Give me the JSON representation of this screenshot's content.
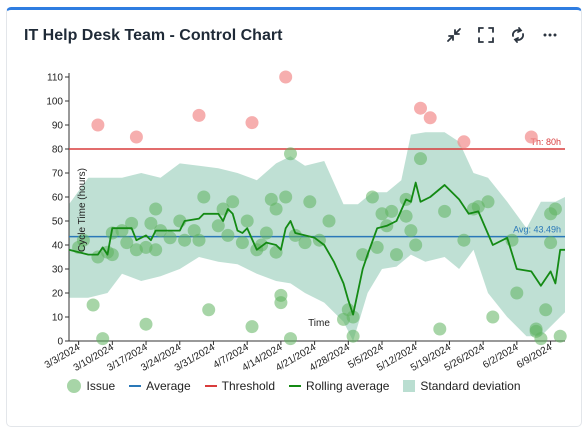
{
  "header": {
    "title": "IT Help Desk Team - Control Chart",
    "tools": [
      "minimize-icon",
      "fullscreen-icon",
      "refresh-icon",
      "more-icon"
    ]
  },
  "colors": {
    "accent": "#2f7de1",
    "issue": "#5fb35f",
    "issue_over": "#f28b8b",
    "average": "#2a78b8",
    "threshold": "#d93c3c",
    "rolling": "#148a14",
    "stddev": "#a9d6c6"
  },
  "legend": {
    "issue": "Issue",
    "average": "Average",
    "threshold": "Threshold",
    "rolling": "Rolling average",
    "stddev": "Standard deviation"
  },
  "chart_data": {
    "type": "scatter",
    "ylabel": "Cycle Time (hours)",
    "xlabel": "Time",
    "ylim": [
      0,
      110
    ],
    "yticks": [
      0,
      10,
      20,
      30,
      40,
      50,
      60,
      70,
      80,
      90,
      100,
      110
    ],
    "xlim": [
      "2024-03-01",
      "2024-06-12"
    ],
    "xticks": [
      "2024-03-03",
      "2024-03-10",
      "2024-03-17",
      "2024-03-24",
      "2024-03-31",
      "2024-04-07",
      "2024-04-14",
      "2024-04-21",
      "2024-04-28",
      "2024-05-05",
      "2024-05-12",
      "2024-05-19",
      "2024-05-26",
      "2024-06-02",
      "2024-06-09"
    ],
    "xtick_labels": [
      "3/3/2024",
      "3/10/2024",
      "3/17/2024",
      "3/24/2024",
      "3/31/2024",
      "4/7/2024",
      "4/14/2024",
      "4/21/2024",
      "4/28/2024",
      "5/5/2024",
      "5/12/2024",
      "5/19/2024",
      "5/26/2024",
      "6/2/2024",
      "6/9/2024"
    ],
    "average": 43.49,
    "average_label": "Avg: 43.49h",
    "threshold": 80,
    "threshold_label": "Th: 80h",
    "issues": [
      {
        "x": "2024-03-03",
        "y": 39
      },
      {
        "x": "2024-03-04",
        "y": 42
      },
      {
        "x": "2024-03-06",
        "y": 15
      },
      {
        "x": "2024-03-07",
        "y": 90
      },
      {
        "x": "2024-03-07",
        "y": 35
      },
      {
        "x": "2024-03-08",
        "y": 1
      },
      {
        "x": "2024-03-09",
        "y": 37
      },
      {
        "x": "2024-03-10",
        "y": 45
      },
      {
        "x": "2024-03-10",
        "y": 36
      },
      {
        "x": "2024-03-12",
        "y": 46
      },
      {
        "x": "2024-03-13",
        "y": 41
      },
      {
        "x": "2024-03-14",
        "y": 49
      },
      {
        "x": "2024-03-15",
        "y": 85
      },
      {
        "x": "2024-03-15",
        "y": 38
      },
      {
        "x": "2024-03-17",
        "y": 39
      },
      {
        "x": "2024-03-17",
        "y": 7
      },
      {
        "x": "2024-03-18",
        "y": 49
      },
      {
        "x": "2024-03-19",
        "y": 55
      },
      {
        "x": "2024-03-19",
        "y": 38
      },
      {
        "x": "2024-03-20",
        "y": 46
      },
      {
        "x": "2024-03-22",
        "y": 43
      },
      {
        "x": "2024-03-24",
        "y": 50
      },
      {
        "x": "2024-03-25",
        "y": 42
      },
      {
        "x": "2024-03-27",
        "y": 46
      },
      {
        "x": "2024-03-28",
        "y": 94
      },
      {
        "x": "2024-03-28",
        "y": 42
      },
      {
        "x": "2024-03-29",
        "y": 60
      },
      {
        "x": "2024-03-30",
        "y": 13
      },
      {
        "x": "2024-04-01",
        "y": 48
      },
      {
        "x": "2024-04-02",
        "y": 55
      },
      {
        "x": "2024-04-03",
        "y": 44
      },
      {
        "x": "2024-04-04",
        "y": 58
      },
      {
        "x": "2024-04-06",
        "y": 41
      },
      {
        "x": "2024-04-07",
        "y": 50
      },
      {
        "x": "2024-04-08",
        "y": 91
      },
      {
        "x": "2024-04-08",
        "y": 6
      },
      {
        "x": "2024-04-09",
        "y": 38
      },
      {
        "x": "2024-04-10",
        "y": 40
      },
      {
        "x": "2024-04-11",
        "y": 45
      },
      {
        "x": "2024-04-12",
        "y": 59
      },
      {
        "x": "2024-04-13",
        "y": 55
      },
      {
        "x": "2024-04-13",
        "y": 37
      },
      {
        "x": "2024-04-14",
        "y": 16
      },
      {
        "x": "2024-04-14",
        "y": 19
      },
      {
        "x": "2024-04-15",
        "y": 110
      },
      {
        "x": "2024-04-15",
        "y": 60
      },
      {
        "x": "2024-04-16",
        "y": 78
      },
      {
        "x": "2024-04-16",
        "y": 1
      },
      {
        "x": "2024-04-17",
        "y": 44
      },
      {
        "x": "2024-04-19",
        "y": 41
      },
      {
        "x": "2024-04-20",
        "y": 58
      },
      {
        "x": "2024-04-22",
        "y": 42
      },
      {
        "x": "2024-04-24",
        "y": 50
      },
      {
        "x": "2024-04-27",
        "y": 9
      },
      {
        "x": "2024-04-28",
        "y": 13
      },
      {
        "x": "2024-04-29",
        "y": 2
      },
      {
        "x": "2024-04-29",
        "y": 10
      },
      {
        "x": "2024-05-01",
        "y": 36
      },
      {
        "x": "2024-05-03",
        "y": 60
      },
      {
        "x": "2024-05-04",
        "y": 39
      },
      {
        "x": "2024-05-05",
        "y": 53
      },
      {
        "x": "2024-05-06",
        "y": 48
      },
      {
        "x": "2024-05-07",
        "y": 54
      },
      {
        "x": "2024-05-08",
        "y": 36
      },
      {
        "x": "2024-05-10",
        "y": 59
      },
      {
        "x": "2024-05-10",
        "y": 52
      },
      {
        "x": "2024-05-11",
        "y": 46
      },
      {
        "x": "2024-05-12",
        "y": 40
      },
      {
        "x": "2024-05-13",
        "y": 97
      },
      {
        "x": "2024-05-13",
        "y": 76
      },
      {
        "x": "2024-05-15",
        "y": 93
      },
      {
        "x": "2024-05-17",
        "y": 5
      },
      {
        "x": "2024-05-18",
        "y": 54
      },
      {
        "x": "2024-05-22",
        "y": 83
      },
      {
        "x": "2024-05-22",
        "y": 42
      },
      {
        "x": "2024-05-24",
        "y": 55
      },
      {
        "x": "2024-05-25",
        "y": 56
      },
      {
        "x": "2024-05-27",
        "y": 58
      },
      {
        "x": "2024-05-28",
        "y": 10
      },
      {
        "x": "2024-06-01",
        "y": 42
      },
      {
        "x": "2024-06-02",
        "y": 20
      },
      {
        "x": "2024-06-05",
        "y": 85
      },
      {
        "x": "2024-06-06",
        "y": 4
      },
      {
        "x": "2024-06-06",
        "y": 5
      },
      {
        "x": "2024-06-07",
        "y": 1
      },
      {
        "x": "2024-06-08",
        "y": 13
      },
      {
        "x": "2024-06-09",
        "y": 53
      },
      {
        "x": "2024-06-09",
        "y": 41
      },
      {
        "x": "2024-06-10",
        "y": 55
      },
      {
        "x": "2024-06-11",
        "y": 2
      }
    ],
    "rolling_average": [
      [
        "2024-03-01",
        38
      ],
      [
        "2024-03-05",
        36
      ],
      [
        "2024-03-07",
        36
      ],
      [
        "2024-03-08",
        39
      ],
      [
        "2024-03-09",
        36
      ],
      [
        "2024-03-10",
        47
      ],
      [
        "2024-03-12",
        47
      ],
      [
        "2024-03-14",
        47
      ],
      [
        "2024-03-15",
        42
      ],
      [
        "2024-03-17",
        44
      ],
      [
        "2024-03-18",
        42
      ],
      [
        "2024-03-19",
        46
      ],
      [
        "2024-03-24",
        46
      ],
      [
        "2024-03-25",
        50
      ],
      [
        "2024-03-28",
        51
      ],
      [
        "2024-03-29",
        53
      ],
      [
        "2024-04-01",
        53
      ],
      [
        "2024-04-02",
        50
      ],
      [
        "2024-04-03",
        55
      ],
      [
        "2024-04-04",
        53
      ],
      [
        "2024-04-05",
        46
      ],
      [
        "2024-04-06",
        45
      ],
      [
        "2024-04-07",
        47
      ],
      [
        "2024-04-09",
        38
      ],
      [
        "2024-04-11",
        41
      ],
      [
        "2024-04-13",
        40
      ],
      [
        "2024-04-14",
        38
      ],
      [
        "2024-04-15",
        47
      ],
      [
        "2024-04-16",
        50
      ],
      [
        "2024-04-17",
        45
      ],
      [
        "2024-04-19",
        44
      ],
      [
        "2024-04-21",
        43
      ],
      [
        "2024-04-23",
        40
      ],
      [
        "2024-04-25",
        33
      ],
      [
        "2024-04-27",
        24
      ],
      [
        "2024-04-28",
        17
      ],
      [
        "2024-04-29",
        11
      ],
      [
        "2024-05-01",
        30
      ],
      [
        "2024-05-02",
        36
      ],
      [
        "2024-05-04",
        47
      ],
      [
        "2024-05-06",
        48
      ],
      [
        "2024-05-08",
        50
      ],
      [
        "2024-05-10",
        59
      ],
      [
        "2024-05-11",
        58
      ],
      [
        "2024-05-12",
        66
      ],
      [
        "2024-05-13",
        58
      ],
      [
        "2024-05-15",
        60
      ],
      [
        "2024-05-18",
        65
      ],
      [
        "2024-05-21",
        59
      ],
      [
        "2024-05-23",
        53
      ],
      [
        "2024-05-25",
        54
      ],
      [
        "2024-05-28",
        40
      ],
      [
        "2024-05-31",
        43
      ],
      [
        "2024-06-02",
        30
      ],
      [
        "2024-06-05",
        29
      ],
      [
        "2024-06-07",
        23
      ],
      [
        "2024-06-09",
        29
      ],
      [
        "2024-06-10",
        24
      ],
      [
        "2024-06-11",
        38
      ],
      [
        "2024-06-12",
        38
      ]
    ],
    "std_upper": [
      [
        "2024-03-01",
        57
      ],
      [
        "2024-03-05",
        68
      ],
      [
        "2024-03-09",
        68
      ],
      [
        "2024-03-12",
        68
      ],
      [
        "2024-03-16",
        70
      ],
      [
        "2024-03-20",
        68
      ],
      [
        "2024-03-24",
        74
      ],
      [
        "2024-03-28",
        73
      ],
      [
        "2024-04-01",
        72
      ],
      [
        "2024-04-05",
        70
      ],
      [
        "2024-04-09",
        67
      ],
      [
        "2024-04-13",
        74
      ],
      [
        "2024-04-16",
        77
      ],
      [
        "2024-04-19",
        73
      ],
      [
        "2024-04-23",
        75
      ],
      [
        "2024-04-27",
        57
      ],
      [
        "2024-04-30",
        57
      ],
      [
        "2024-05-03",
        62
      ],
      [
        "2024-05-06",
        62
      ],
      [
        "2024-05-09",
        67
      ],
      [
        "2024-05-11",
        86
      ],
      [
        "2024-05-14",
        87
      ],
      [
        "2024-05-18",
        87
      ],
      [
        "2024-05-21",
        83
      ],
      [
        "2024-05-24",
        70
      ],
      [
        "2024-05-27",
        68
      ],
      [
        "2024-05-31",
        58
      ],
      [
        "2024-06-04",
        47
      ],
      [
        "2024-06-07",
        58
      ],
      [
        "2024-06-10",
        58
      ],
      [
        "2024-06-12",
        60
      ]
    ],
    "std_lower": [
      [
        "2024-03-01",
        18
      ],
      [
        "2024-03-05",
        18
      ],
      [
        "2024-03-09",
        20
      ],
      [
        "2024-03-12",
        28
      ],
      [
        "2024-03-16",
        25
      ],
      [
        "2024-03-20",
        27
      ],
      [
        "2024-03-24",
        30
      ],
      [
        "2024-03-28",
        35
      ],
      [
        "2024-04-01",
        33
      ],
      [
        "2024-04-05",
        32
      ],
      [
        "2024-04-09",
        28
      ],
      [
        "2024-04-13",
        25
      ],
      [
        "2024-04-16",
        24
      ],
      [
        "2024-04-19",
        20
      ],
      [
        "2024-04-23",
        16
      ],
      [
        "2024-04-27",
        8
      ],
      [
        "2024-04-29",
        0
      ],
      [
        "2024-05-02",
        20
      ],
      [
        "2024-05-05",
        30
      ],
      [
        "2024-05-08",
        31
      ],
      [
        "2024-05-11",
        36
      ],
      [
        "2024-05-14",
        33
      ],
      [
        "2024-05-18",
        35
      ],
      [
        "2024-05-21",
        30
      ],
      [
        "2024-05-24",
        38
      ],
      [
        "2024-05-27",
        20
      ],
      [
        "2024-05-31",
        10
      ],
      [
        "2024-06-04",
        2
      ],
      [
        "2024-06-07",
        2
      ],
      [
        "2024-06-10",
        8
      ],
      [
        "2024-06-12",
        12
      ]
    ]
  }
}
